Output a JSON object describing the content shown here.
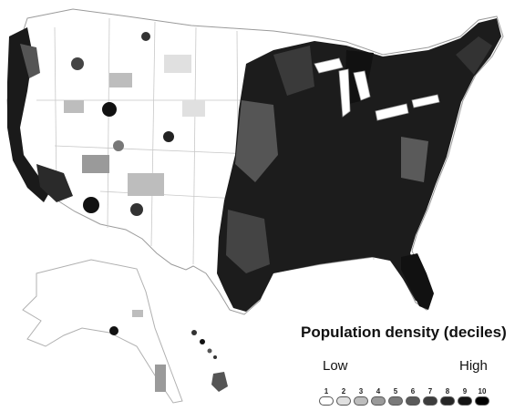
{
  "legend": {
    "title": "Population density (deciles)",
    "low_label": "Low",
    "high_label": "High",
    "deciles": [
      {
        "label": "1",
        "color": "#ffffff"
      },
      {
        "label": "2",
        "color": "#e0e0e0"
      },
      {
        "label": "3",
        "color": "#bdbdbd"
      },
      {
        "label": "4",
        "color": "#9a9a9a"
      },
      {
        "label": "5",
        "color": "#7a7a7a"
      },
      {
        "label": "6",
        "color": "#5a5a5a"
      },
      {
        "label": "7",
        "color": "#3d3d3d"
      },
      {
        "label": "8",
        "color": "#262626"
      },
      {
        "label": "9",
        "color": "#141414"
      },
      {
        "label": "10",
        "color": "#000000"
      }
    ]
  },
  "colors": {
    "background": "#ffffff",
    "boundary": "#aaaaaa"
  }
}
